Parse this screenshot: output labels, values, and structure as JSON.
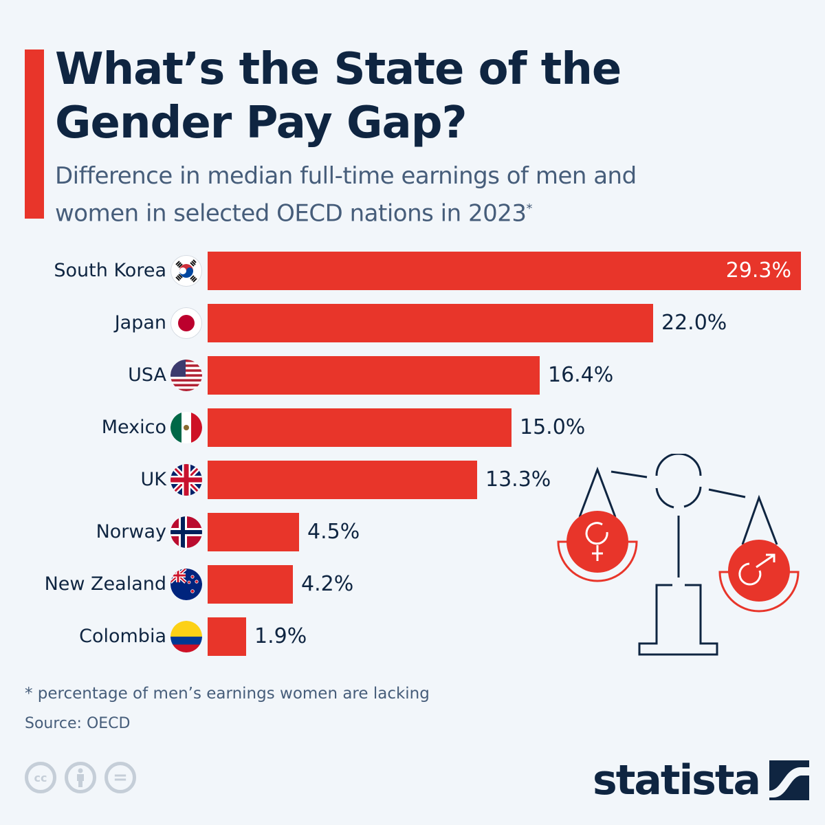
{
  "header": {
    "title": "What’s the State of the Gender Pay Gap?",
    "subtitle": "Difference in median full-time earnings of men and women in selected OECD nations in 2023",
    "subtitle_marker": "*"
  },
  "colors": {
    "accent": "#e8352a",
    "text_dark": "#0f2541",
    "text_muted": "#465d7a",
    "background": "#f2f6fa"
  },
  "chart_data": {
    "type": "bar",
    "orientation": "horizontal",
    "title": "What’s the State of the Gender Pay Gap?",
    "subtitle": "Difference in median full-time earnings of men and women in selected OECD nations in 2023*",
    "categories": [
      "South Korea",
      "Japan",
      "USA",
      "Mexico",
      "UK",
      "Norway",
      "New Zealand",
      "Colombia"
    ],
    "values": [
      29.3,
      22.0,
      16.4,
      15.0,
      13.3,
      4.5,
      4.2,
      1.9
    ],
    "value_labels": [
      "29.3%",
      "22.0%",
      "16.4%",
      "15.0%",
      "13.3%",
      "4.5%",
      "4.2%",
      "1.9%"
    ],
    "flags": [
      "south-korea-flag-icon",
      "japan-flag-icon",
      "usa-flag-icon",
      "mexico-flag-icon",
      "uk-flag-icon",
      "norway-flag-icon",
      "new-zealand-flag-icon",
      "colombia-flag-icon"
    ],
    "unit": "%",
    "xlabel": "",
    "ylabel": "",
    "xlim": [
      0,
      29.3
    ],
    "grid": false,
    "legend": "none",
    "bar_color": "#e8352a"
  },
  "illustration": {
    "name": "scales-of-justice-icon",
    "left_symbol": "female-symbol-icon",
    "right_symbol": "male-symbol-icon"
  },
  "footer": {
    "footnote": "* percentage of men’s earnings women are lacking",
    "source": "Source: OECD",
    "license_icons": [
      "cc-icon",
      "attribution-icon",
      "no-derivatives-icon"
    ],
    "cc_label": "cc",
    "equals_label": "=",
    "brand": "statista"
  }
}
